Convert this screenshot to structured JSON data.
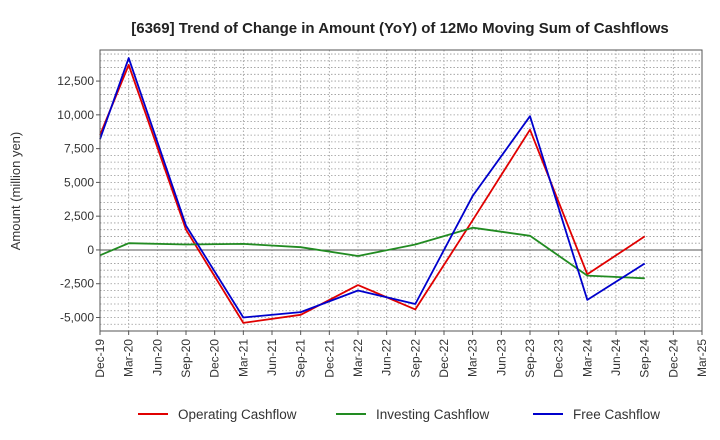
{
  "chart_data": {
    "type": "line",
    "title": "[6369]  Trend of Change in Amount (YoY) of 12Mo Moving Sum of Cashflows",
    "xlabel": "",
    "ylabel": "Amount (million yen)",
    "ylim": [
      -6000,
      14800
    ],
    "yticks": [
      -5000,
      -2500,
      0,
      2500,
      5000,
      7500,
      10000,
      12500
    ],
    "ytick_labels": [
      "-5,000",
      "-2,500",
      "0",
      "2,500",
      "5,000",
      "7,500",
      "10,000",
      "12,500"
    ],
    "categories": [
      "Dec-19",
      "Mar-20",
      "Jun-20",
      "Sep-20",
      "Dec-20",
      "Mar-21",
      "Jun-21",
      "Sep-21",
      "Dec-21",
      "Mar-22",
      "Jun-22",
      "Sep-22",
      "Dec-22",
      "Mar-23",
      "Jun-23",
      "Sep-23",
      "Dec-23",
      "Mar-24",
      "Jun-24",
      "Sep-24",
      "Dec-24",
      "Mar-25"
    ],
    "grid": true,
    "legend_position": "bottom",
    "series": [
      {
        "name": "Operating Cashflow",
        "color": "#e00000",
        "values": [
          8500,
          13700,
          null,
          1500,
          null,
          -5400,
          null,
          -4800,
          null,
          -2600,
          null,
          -4400,
          null,
          2200,
          null,
          8900,
          null,
          -1800,
          null,
          1000,
          null,
          null
        ]
      },
      {
        "name": "Investing Cashflow",
        "color": "#228b22",
        "values": [
          -400,
          500,
          null,
          400,
          null,
          450,
          null,
          200,
          null,
          -450,
          null,
          400,
          null,
          1650,
          null,
          1050,
          null,
          -1900,
          null,
          -2100,
          null,
          null
        ]
      },
      {
        "name": "Free Cashflow",
        "color": "#0000cc",
        "values": [
          8200,
          14200,
          null,
          1800,
          null,
          -5000,
          null,
          -4600,
          null,
          -3000,
          null,
          -4000,
          null,
          4000,
          null,
          9900,
          null,
          -3700,
          null,
          -1000,
          null,
          null
        ]
      }
    ]
  }
}
